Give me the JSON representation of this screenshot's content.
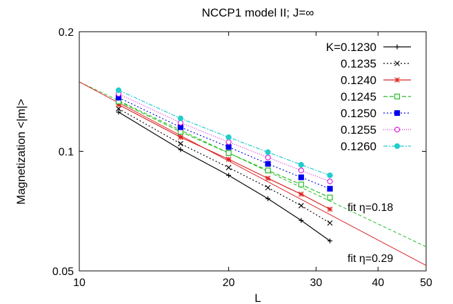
{
  "chart_data": {
    "type": "line",
    "title": "NCCP1 model II; J=∞",
    "xlabel": "L",
    "ylabel": "Magnetization <|m|>",
    "xscale": "log",
    "yscale": "log",
    "xlim": [
      10,
      50
    ],
    "ylim": [
      0.05,
      0.2
    ],
    "xticks": [
      10,
      20,
      30,
      40,
      50
    ],
    "xtick_labels": [
      "10",
      "20",
      "30",
      "40",
      "50"
    ],
    "yticks": [
      0.05,
      0.1,
      0.2
    ],
    "ytick_labels": [
      "0.05",
      "0.1",
      "0.2"
    ],
    "grid": false,
    "legend_position": "top-right",
    "x": [
      12,
      16,
      20,
      24,
      28,
      32
    ],
    "series": [
      {
        "name": "K=0.1230",
        "color": "#000000",
        "dash": "",
        "marker": "plus",
        "values": [
          0.1255,
          0.101,
          0.087,
          0.076,
          0.067,
          0.0595
        ]
      },
      {
        "name": "0.1235",
        "color": "#000000",
        "dash": "2,3",
        "marker": "cross",
        "values": [
          0.128,
          0.1045,
          0.091,
          0.081,
          0.073,
          0.066
        ]
      },
      {
        "name": "0.1240",
        "color": "#dd2222",
        "dash": "",
        "marker": "star",
        "values": [
          0.131,
          0.1085,
          0.0955,
          0.0855,
          0.078,
          0.0715
        ]
      },
      {
        "name": "0.1245",
        "color": "#22bb22",
        "dash": "6,3",
        "marker": "open-square",
        "values": [
          0.1335,
          0.112,
          0.099,
          0.0895,
          0.0825,
          0.0765
        ]
      },
      {
        "name": "0.1250",
        "color": "#0000ee",
        "dash": "2,3",
        "marker": "filled-square",
        "values": [
          0.1365,
          0.115,
          0.1025,
          0.093,
          0.086,
          0.0805
        ]
      },
      {
        "name": "0.1255",
        "color": "#dd22dd",
        "dash": "1,2",
        "marker": "open-circle",
        "values": [
          0.1395,
          0.118,
          0.1055,
          0.0965,
          0.0895,
          0.084
        ]
      },
      {
        "name": "0.1260",
        "color": "#22cccc",
        "dash": "6,2,2,2",
        "marker": "filled-circle",
        "values": [
          0.1425,
          0.121,
          0.1085,
          0.0995,
          0.0925,
          0.087
        ]
      }
    ],
    "fit_lines": [
      {
        "label": "fit η=0.18",
        "color": "#22bb22",
        "dash": "5,3",
        "x": [
          10,
          50
        ],
        "values": [
          0.1495,
          0.0575
        ]
      },
      {
        "label": "fit η=0.29",
        "color": "#dd2222",
        "dash": "",
        "x": [
          10,
          50
        ],
        "values": [
          0.1495,
          0.0516
        ]
      }
    ]
  }
}
